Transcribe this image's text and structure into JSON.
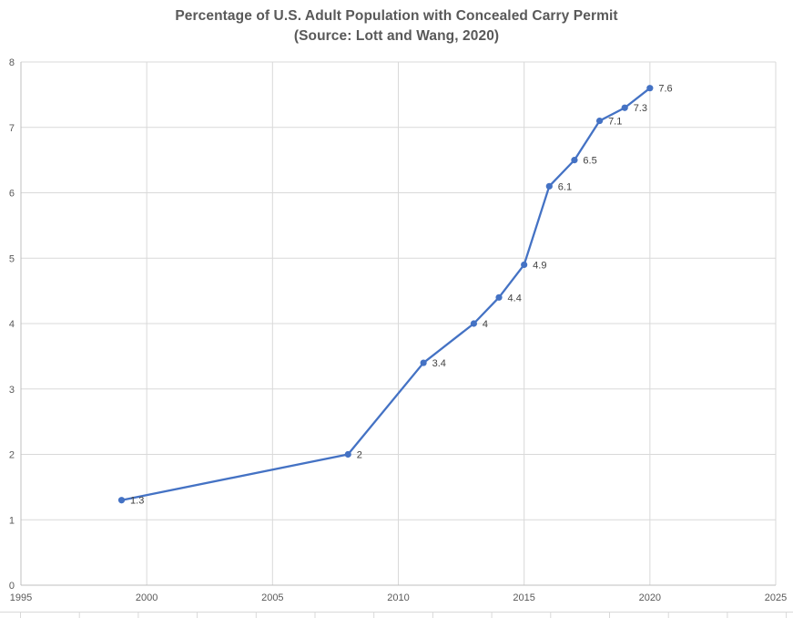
{
  "title": {
    "line1": "Percentage of U.S. Adult Population with Concealed Carry Permit",
    "line2": "(Source: Lott and Wang, 2020)"
  },
  "chart_data": {
    "type": "line",
    "title": "Percentage of U.S. Adult Population with Concealed Carry Permit (Source: Lott and Wang, 2020)",
    "xlabel": "",
    "ylabel": "",
    "x": [
      1999,
      2008,
      2011,
      2013,
      2014,
      2015,
      2016,
      2017,
      2018,
      2019,
      2020
    ],
    "values": [
      1.3,
      2,
      3.4,
      4,
      4.4,
      4.9,
      6.1,
      6.5,
      7.1,
      7.3,
      7.6
    ],
    "point_labels": [
      "1.3",
      "2",
      "3.4",
      "4",
      "4.4",
      "4.9",
      "6.1",
      "6.5",
      "7.1",
      "7.3",
      "7.6"
    ],
    "xlim": [
      1995,
      2025
    ],
    "ylim": [
      0,
      8
    ],
    "x_ticks": [
      1995,
      2000,
      2005,
      2010,
      2015,
      2020,
      2025
    ],
    "y_ticks": [
      0,
      1,
      2,
      3,
      4,
      5,
      6,
      7,
      8
    ],
    "grid": true,
    "legend": false,
    "colors": {
      "series": "#4472C4",
      "gridline": "#D9D9D9",
      "axis_line": "#BFBFBF",
      "tick_label": "#595959",
      "data_label": "#404040",
      "title": "#595959",
      "worksheet_border": "#D9D9D9"
    }
  }
}
